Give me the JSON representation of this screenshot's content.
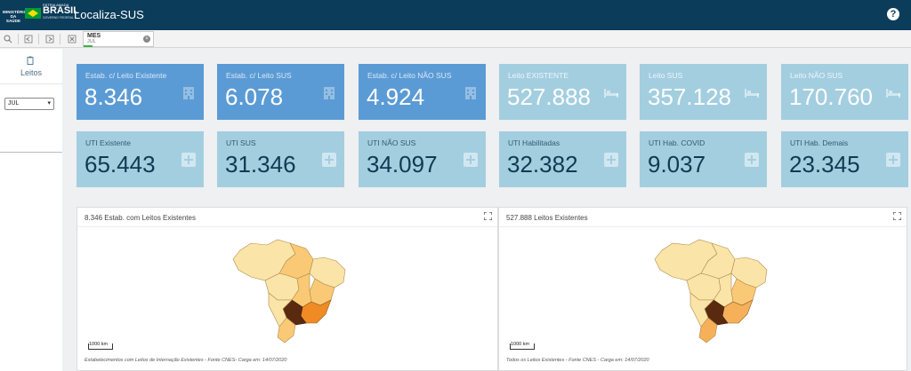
{
  "header": {
    "ministry": "MINISTÉRIO DA SAÚDE",
    "patria": "PÁTRIA AMADA",
    "brasil": "BRASIL",
    "gov": "GOVERNO FEDERAL",
    "title": "Localiza-SUS",
    "help_icon": "?"
  },
  "toolbar": {
    "icons": [
      "smart-search-icon",
      "step-back-icon",
      "step-forward-icon",
      "clear-selections-icon"
    ],
    "selection": {
      "field": "MES",
      "value": "JUL"
    }
  },
  "sidebar": {
    "tab_label": "Leitos",
    "month_select": "JUL"
  },
  "kpis": [
    {
      "label": "Estab. c/ Leito Existente",
      "value": "8.346",
      "style": "dark",
      "icon": "hospital-icon"
    },
    {
      "label": "Estab. c/ Leito SUS",
      "value": "6.078",
      "style": "dark",
      "icon": "hospital-icon"
    },
    {
      "label": "Estab. c/ Leito NÃO SUS",
      "value": "4.924",
      "style": "dark",
      "icon": "hospital-icon"
    },
    {
      "label": "Leito EXISTENTE",
      "value": "527.888",
      "style": "light",
      "icon": "bed-icon"
    },
    {
      "label": "Leito SUS",
      "value": "357.128",
      "style": "light",
      "icon": "bed-icon"
    },
    {
      "label": "Leito NÃO SUS",
      "value": "170.760",
      "style": "light",
      "icon": "bed-icon"
    },
    {
      "label": "UTI Existente",
      "value": "65.443",
      "style": "teal",
      "icon": "plus-icon"
    },
    {
      "label": "UTI SUS",
      "value": "31.346",
      "style": "teal",
      "icon": "plus-icon"
    },
    {
      "label": "UTI NÃO SUS",
      "value": "34.097",
      "style": "teal",
      "icon": "plus-icon"
    },
    {
      "label": "UTI Habilitadas",
      "value": "32.382",
      "style": "teal",
      "icon": "plus-icon"
    },
    {
      "label": "UTI Hab. COVID",
      "value": "9.037",
      "style": "teal",
      "icon": "plus-icon"
    },
    {
      "label": "UTI Hab. Demais",
      "value": "23.345",
      "style": "teal",
      "icon": "plus-icon"
    }
  ],
  "panels": [
    {
      "title": "8.346 Estab. com Leitos Existentes",
      "scale": "1000 km",
      "footnote": "Estabelecimentos com Leitos de Internação Existentes - Fonte CNES- Carga em: 14/07/2020",
      "southeast_color": "#f08a24"
    },
    {
      "title": "527.888 Leitos Existentes",
      "scale": "1000 km",
      "footnote": "Todos os Leitos Existentes - Fonte CNES - Carga em: 14/07/2020",
      "southeast_color": "#f6b05a"
    }
  ],
  "colors": {
    "header_bg": "#0b3c5a",
    "kpi_dark": "#5b9bd5",
    "kpi_light": "#a3cee0",
    "map_light": "#fbe4a8",
    "map_mid": "#f9c976",
    "map_dark": "#5a2a10"
  }
}
